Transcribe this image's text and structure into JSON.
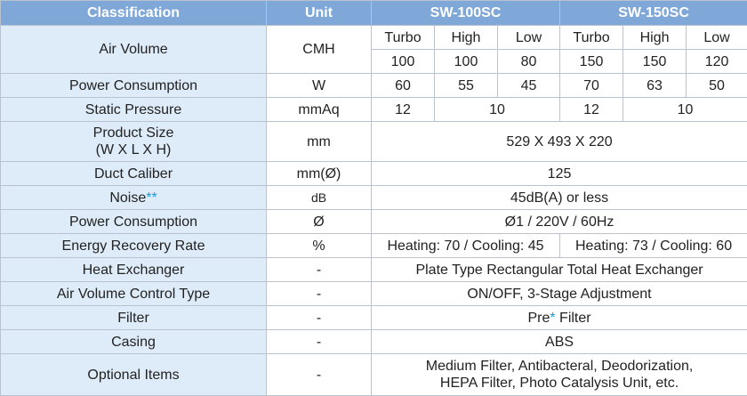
{
  "header": {
    "classification": "Classification",
    "unit": "Unit",
    "model_1": "SW-100SC",
    "model_2": "SW-150SC"
  },
  "rows": {
    "air_volume": {
      "label": "Air Volume",
      "unit": "CMH",
      "modes": [
        "Turbo",
        "High",
        "Low",
        "Turbo",
        "High",
        "Low"
      ],
      "values": [
        "100",
        "100",
        "80",
        "150",
        "150",
        "120"
      ]
    },
    "power_consumption": {
      "label": "Power Consumption",
      "unit": "W",
      "values": [
        "60",
        "55",
        "45",
        "70",
        "63",
        "50"
      ]
    },
    "static_pressure": {
      "label": "Static Pressure",
      "unit": "mmAq",
      "sw100_turbo": "12",
      "sw100_high_low": "10",
      "sw150_turbo": "12",
      "sw150_high_low": "10"
    },
    "product_size": {
      "label_line1": "Product Size",
      "label_line2": "(W X L X H)",
      "unit": "mm",
      "value": "529 X 493 X 220"
    },
    "duct_caliber": {
      "label": "Duct Caliber",
      "unit": "mm(Ø)",
      "value": "125"
    },
    "noise": {
      "label": "Noise",
      "marker": "**",
      "unit": "dB",
      "value": "45dB(A) or less"
    },
    "power_supply": {
      "label": "Power Consumption",
      "unit": "Ø",
      "value": "Ø1 / 220V / 60Hz"
    },
    "energy_recovery": {
      "label": "Energy Recovery Rate",
      "unit": "%",
      "sw100": "Heating: 70 / Cooling: 45",
      "sw150": "Heating: 73 / Cooling: 60"
    },
    "heat_exchanger": {
      "label": "Heat Exchanger",
      "unit": "-",
      "value": "Plate Type Rectangular Total Heat Exchanger"
    },
    "air_volume_control": {
      "label": "Air Volume Control Type",
      "unit": "-",
      "value": "ON/OFF, 3-Stage Adjustment"
    },
    "filter": {
      "label": "Filter",
      "unit": "-",
      "value_pre": "Pre",
      "marker": "*",
      "value_post": " Filter"
    },
    "casing": {
      "label": "Casing",
      "unit": "-",
      "value": "ABS"
    },
    "optional_items": {
      "label": "Optional Items",
      "unit": "-",
      "line1": "Medium Filter, Antibacteral, Deodorization,",
      "line2": "HEPA Filter, Photo Catalysis Unit, etc."
    }
  },
  "colors": {
    "header_bg": "#7fa7d8",
    "label_bg": "#deebf8",
    "accent": "#1b9be0",
    "border": "#b9c3cf"
  }
}
